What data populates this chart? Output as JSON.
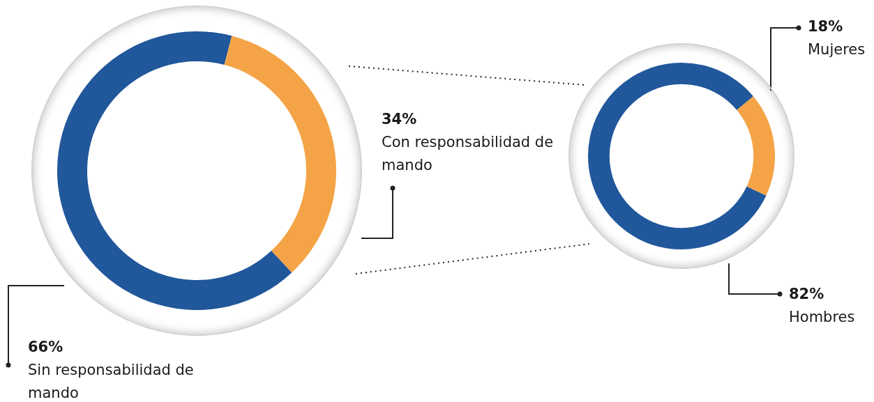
{
  "chart_data": [
    {
      "type": "donut",
      "categories": [
        "Sin responsabilidad de mando",
        "Con responsabilidad de mando"
      ],
      "values": [
        66,
        34
      ],
      "colors": [
        "#21579b",
        "#f4a446"
      ],
      "value_labels": [
        "66%",
        "34%"
      ],
      "legend": false
    },
    {
      "type": "donut",
      "categories": [
        "Hombres",
        "Mujeres"
      ],
      "values": [
        82,
        18
      ],
      "colors": [
        "#21579b",
        "#f4a446"
      ],
      "value_labels": [
        "82%",
        "18%"
      ],
      "legend": false
    }
  ]
}
